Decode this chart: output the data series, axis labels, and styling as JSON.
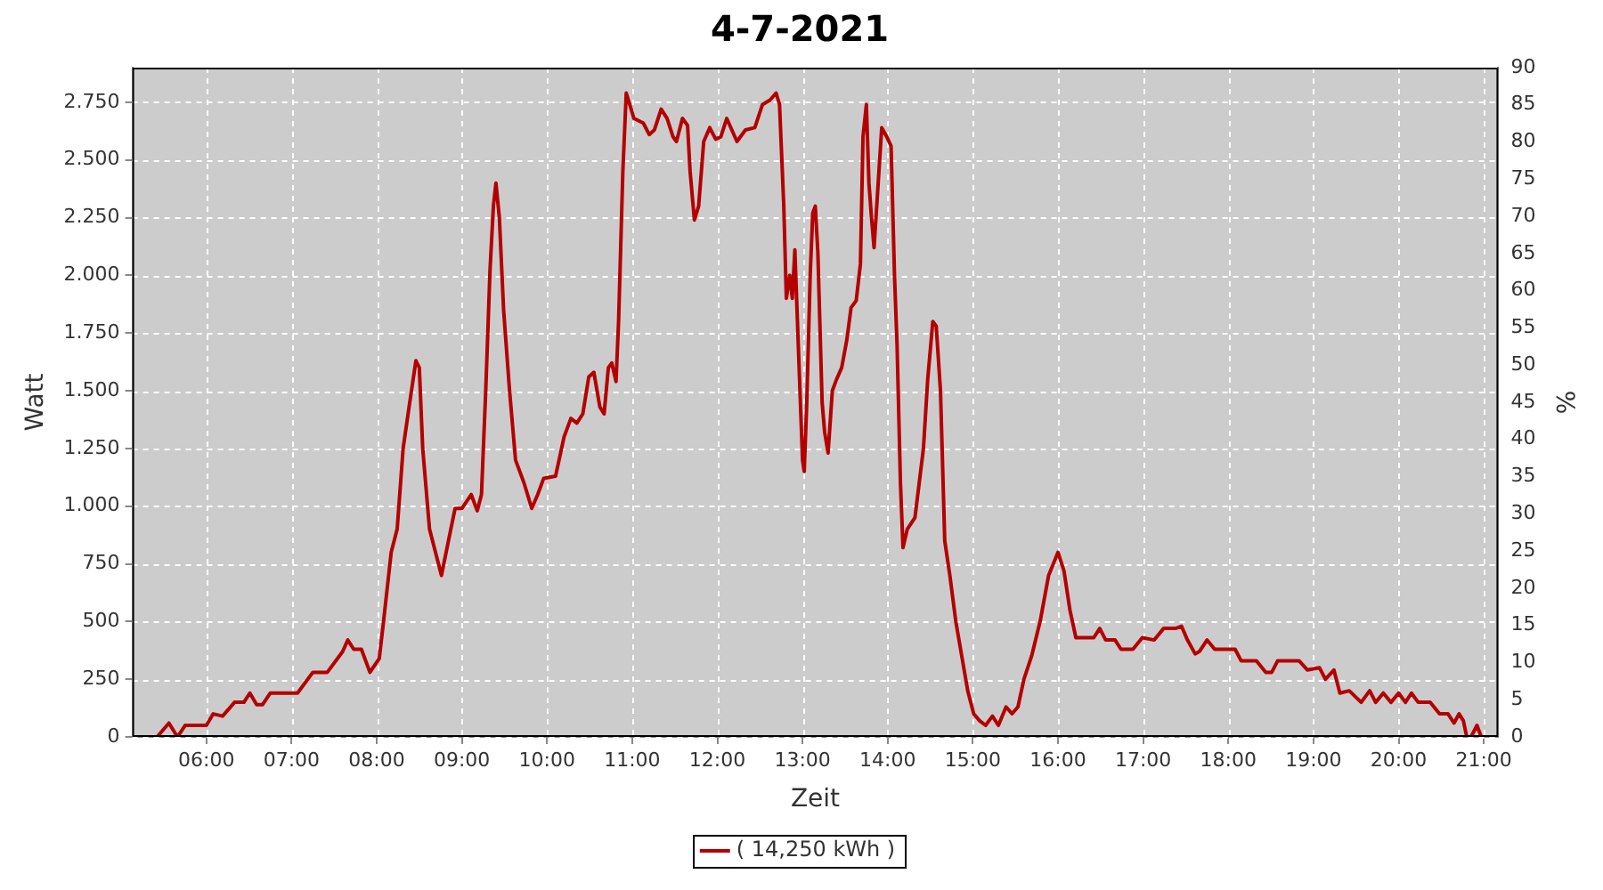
{
  "chart_data": {
    "type": "line",
    "title": "4-7-2021",
    "xlabel": "Zeit",
    "ylabel": "Watt",
    "y2label": "%",
    "series": [
      {
        "name": "( 14,250 kWh )",
        "color": "#b40000",
        "x": [
          5.42,
          5.56,
          5.66,
          5.75,
          6.0,
          6.08,
          6.19,
          6.33,
          6.44,
          6.51,
          6.59,
          6.66,
          6.75,
          7.07,
          7.25,
          7.42,
          7.6,
          7.66,
          7.73,
          7.82,
          7.92,
          8.03,
          8.08,
          8.17,
          8.24,
          8.31,
          8.38,
          8.46,
          8.5,
          8.54,
          8.62,
          8.69,
          8.76,
          8.87,
          8.92,
          9.0,
          9.11,
          9.18,
          9.23,
          9.28,
          9.33,
          9.37,
          9.4,
          9.44,
          9.49,
          9.56,
          9.63,
          9.73,
          9.82,
          9.89,
          9.96,
          10.1,
          10.2,
          10.28,
          10.35,
          10.42,
          10.49,
          10.55,
          10.62,
          10.67,
          10.72,
          10.76,
          10.81,
          10.84,
          10.89,
          10.93,
          11.02,
          11.13,
          11.2,
          11.26,
          11.34,
          11.41,
          11.48,
          11.52,
          11.59,
          11.65,
          11.68,
          11.73,
          11.78,
          11.84,
          11.91,
          11.98,
          12.04,
          12.11,
          12.23,
          12.33,
          12.44,
          12.53,
          12.62,
          12.69,
          12.73,
          12.78,
          12.81,
          12.85,
          12.88,
          12.91,
          12.96,
          13.0,
          13.02,
          13.05,
          13.09,
          13.12,
          13.15,
          13.18,
          13.23,
          13.26,
          13.3,
          13.35,
          13.4,
          13.46,
          13.52,
          13.57,
          13.63,
          13.68,
          13.71,
          13.75,
          13.78,
          13.81,
          13.84,
          13.88,
          13.93,
          13.99,
          14.04,
          14.08,
          14.11,
          14.15,
          14.18,
          14.23,
          14.32,
          14.37,
          14.42,
          14.47,
          14.53,
          14.57,
          14.62,
          14.67,
          14.73,
          14.8,
          14.87,
          14.94,
          15.01,
          15.08,
          15.15,
          15.23,
          15.3,
          15.39,
          15.46,
          15.53,
          15.6,
          15.69,
          15.79,
          15.89,
          16.0,
          16.07,
          16.14,
          16.21,
          16.42,
          16.49,
          16.56,
          16.67,
          16.74,
          16.88,
          16.99,
          17.13,
          17.24,
          17.38,
          17.45,
          17.52,
          17.61,
          17.66,
          17.75,
          17.84,
          18.08,
          18.15,
          18.33,
          18.44,
          18.51,
          18.58,
          18.83,
          18.93,
          19.07,
          19.14,
          19.24,
          19.31,
          19.42,
          19.56,
          19.66,
          19.73,
          19.82,
          19.91,
          20.0,
          20.08,
          20.15,
          20.23,
          20.37,
          20.48,
          20.58,
          20.65,
          20.71,
          20.76,
          20.8,
          20.85,
          20.92,
          20.97,
          21.07
        ],
        "values": [
          0,
          60,
          0,
          50,
          50,
          100,
          90,
          150,
          150,
          190,
          140,
          140,
          190,
          190,
          280,
          280,
          370,
          420,
          380,
          380,
          280,
          340,
          500,
          800,
          900,
          1250,
          1430,
          1630,
          1600,
          1250,
          900,
          800,
          700,
          900,
          990,
          990,
          1050,
          980,
          1050,
          1500,
          2020,
          2300,
          2400,
          2250,
          1850,
          1500,
          1200,
          1100,
          990,
          1050,
          1120,
          1130,
          1300,
          1380,
          1360,
          1400,
          1560,
          1580,
          1430,
          1400,
          1600,
          1620,
          1540,
          1800,
          2450,
          2790,
          2680,
          2660,
          2610,
          2630,
          2720,
          2680,
          2600,
          2580,
          2680,
          2650,
          2450,
          2240,
          2300,
          2580,
          2640,
          2590,
          2600,
          2680,
          2580,
          2630,
          2640,
          2740,
          2760,
          2790,
          2740,
          2300,
          1900,
          2000,
          1900,
          2110,
          1600,
          1200,
          1150,
          1450,
          2000,
          2270,
          2300,
          2100,
          1450,
          1320,
          1230,
          1500,
          1550,
          1600,
          1720,
          1860,
          1890,
          2050,
          2600,
          2740,
          2400,
          2250,
          2120,
          2350,
          2640,
          2600,
          2560,
          2000,
          1700,
          1100,
          820,
          900,
          950,
          1100,
          1250,
          1550,
          1800,
          1780,
          1500,
          850,
          700,
          500,
          350,
          200,
          100,
          70,
          50,
          90,
          50,
          130,
          100,
          130,
          250,
          350,
          500,
          700,
          800,
          720,
          550,
          430,
          430,
          470,
          420,
          420,
          380,
          380,
          430,
          420,
          470,
          470,
          480,
          420,
          360,
          370,
          420,
          380,
          380,
          330,
          330,
          280,
          280,
          330,
          330,
          290,
          300,
          250,
          290,
          190,
          200,
          150,
          200,
          150,
          190,
          150,
          190,
          150,
          190,
          150,
          150,
          100,
          100,
          60,
          100,
          70,
          0,
          0,
          50,
          0,
          0
        ]
      }
    ],
    "xlim": [
      5.13,
      21.17
    ],
    "xticks": [
      {
        "value": 6,
        "label": "06:00"
      },
      {
        "value": 7,
        "label": "07:00"
      },
      {
        "value": 8,
        "label": "08:00"
      },
      {
        "value": 9,
        "label": "09:00"
      },
      {
        "value": 10,
        "label": "10:00"
      },
      {
        "value": 11,
        "label": "11:00"
      },
      {
        "value": 12,
        "label": "12:00"
      },
      {
        "value": 13,
        "label": "13:00"
      },
      {
        "value": 14,
        "label": "14:00"
      },
      {
        "value": 15,
        "label": "15:00"
      },
      {
        "value": 16,
        "label": "16:00"
      },
      {
        "value": 17,
        "label": "17:00"
      },
      {
        "value": 18,
        "label": "18:00"
      },
      {
        "value": 19,
        "label": "19:00"
      },
      {
        "value": 20,
        "label": "20:00"
      },
      {
        "value": 21,
        "label": "21:00"
      }
    ],
    "ylim": [
      0,
      2900
    ],
    "yticks": [
      0,
      {
        "value": 250,
        "label": "250"
      },
      {
        "value": 500,
        "label": "500"
      },
      {
        "value": 750,
        "label": "750"
      },
      {
        "value": 1000,
        "label": "1.000"
      },
      {
        "value": 1250,
        "label": "1.250"
      },
      {
        "value": 1500,
        "label": "1.500"
      },
      {
        "value": 1750,
        "label": "1.750"
      },
      {
        "value": 2000,
        "label": "2.000"
      },
      {
        "value": 2250,
        "label": "2.250"
      },
      {
        "value": 2500,
        "label": "2.500"
      },
      {
        "value": 2750,
        "label": "2.750"
      }
    ],
    "y2lim": [
      0,
      90
    ],
    "y2ticks": [
      0,
      5,
      10,
      15,
      20,
      25,
      30,
      35,
      40,
      45,
      50,
      55,
      60,
      65,
      70,
      75,
      80,
      85,
      90
    ],
    "grid": true,
    "legend": "bottom",
    "marker": "none",
    "line_style": "solid"
  }
}
